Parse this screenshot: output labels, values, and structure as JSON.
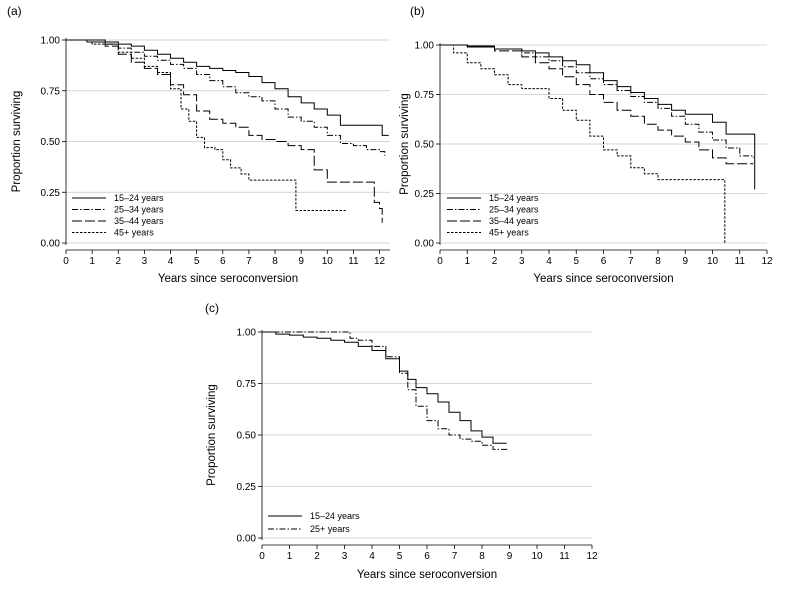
{
  "chart_data": [
    {
      "panel": "(a)",
      "type": "line",
      "xlabel": "Years since seroconversion",
      "ylabel": "Proportion surviving",
      "xlim": [
        0,
        12.4
      ],
      "ylim": [
        0,
        1
      ],
      "xticks": [
        "0",
        "1",
        "2",
        "3",
        "4",
        "5",
        "6",
        "7",
        "8",
        "9",
        "10",
        "11",
        "12"
      ],
      "yticks": [
        "0.00",
        "0.25",
        "0.50",
        "0.75",
        "1.00"
      ],
      "legend_position": "bottom-left",
      "series": [
        {
          "name": "15–24 years",
          "style": "solid",
          "x": [
            0,
            0.8,
            1.5,
            2,
            2.5,
            3,
            3.5,
            4,
            4.5,
            5,
            5.5,
            6,
            6.5,
            7,
            7.5,
            8,
            8.5,
            9,
            9.5,
            10,
            10.5,
            11,
            11.5,
            12,
            12.1,
            12.35
          ],
          "y": [
            1.0,
            1.0,
            0.99,
            0.98,
            0.97,
            0.95,
            0.93,
            0.91,
            0.89,
            0.87,
            0.86,
            0.85,
            0.84,
            0.82,
            0.79,
            0.76,
            0.72,
            0.69,
            0.66,
            0.63,
            0.58,
            0.58,
            0.58,
            0.58,
            0.53,
            0.53
          ]
        },
        {
          "name": "25–34 years",
          "style": "dashdot",
          "x": [
            0,
            0.8,
            1.5,
            2,
            2.5,
            3,
            3.5,
            4,
            4.5,
            5,
            5.5,
            6,
            6.5,
            7,
            7.5,
            8,
            8.5,
            9,
            9.5,
            10,
            10.5,
            11,
            11.5,
            12,
            12.2
          ],
          "y": [
            1.0,
            0.99,
            0.98,
            0.96,
            0.94,
            0.92,
            0.9,
            0.88,
            0.86,
            0.83,
            0.8,
            0.77,
            0.74,
            0.72,
            0.7,
            0.66,
            0.62,
            0.6,
            0.57,
            0.53,
            0.49,
            0.48,
            0.46,
            0.45,
            0.43
          ]
        },
        {
          "name": "35–44 years",
          "style": "longdash",
          "x": [
            0,
            0.8,
            1.5,
            2,
            2.5,
            3,
            3.5,
            4,
            4.5,
            5,
            5.5,
            6,
            6.5,
            7,
            7.5,
            8,
            8.5,
            9,
            9.5,
            10,
            10.5,
            11,
            11.5,
            11.8,
            12.0,
            12.1
          ],
          "y": [
            1.0,
            0.99,
            0.97,
            0.93,
            0.89,
            0.86,
            0.83,
            0.78,
            0.73,
            0.65,
            0.61,
            0.59,
            0.57,
            0.53,
            0.51,
            0.5,
            0.48,
            0.46,
            0.36,
            0.3,
            0.3,
            0.3,
            0.3,
            0.2,
            0.17,
            0.1
          ]
        },
        {
          "name": "45+ years",
          "style": "dotted",
          "x": [
            0,
            1,
            2,
            2.5,
            3,
            3.5,
            4,
            4.4,
            4.7,
            5,
            5.3,
            5.7,
            6,
            6.3,
            6.7,
            7,
            7.5,
            8,
            8.5,
            8.8,
            9,
            10,
            10.7
          ],
          "y": [
            1.0,
            0.98,
            0.94,
            0.91,
            0.87,
            0.84,
            0.76,
            0.66,
            0.6,
            0.52,
            0.47,
            0.46,
            0.41,
            0.37,
            0.34,
            0.31,
            0.31,
            0.31,
            0.31,
            0.16,
            0.16,
            0.16,
            0.16
          ]
        }
      ]
    },
    {
      "panel": "(b)",
      "type": "line",
      "xlabel": "Years since seroconversion",
      "ylabel": "Proportion surviving",
      "xlim": [
        0,
        12
      ],
      "ylim": [
        0,
        1
      ],
      "xticks": [
        "0",
        "1",
        "2",
        "3",
        "4",
        "5",
        "6",
        "7",
        "8",
        "9",
        "10",
        "11",
        "12"
      ],
      "yticks": [
        "0.00",
        "0.25",
        "0.50",
        "0.75",
        "1.00"
      ],
      "legend_position": "bottom-left",
      "series": [
        {
          "name": "15–24 years",
          "style": "solid",
          "x": [
            0,
            1,
            2,
            3,
            3.5,
            4,
            4.5,
            5,
            5.5,
            6,
            6.5,
            7,
            7.5,
            8,
            8.5,
            9,
            9.5,
            10,
            10.5,
            11,
            11.3,
            11.55
          ],
          "y": [
            1.0,
            0.995,
            0.98,
            0.97,
            0.96,
            0.94,
            0.92,
            0.9,
            0.86,
            0.82,
            0.79,
            0.76,
            0.73,
            0.7,
            0.67,
            0.65,
            0.65,
            0.61,
            0.55,
            0.55,
            0.55,
            0.27
          ]
        },
        {
          "name": "25–34 years",
          "style": "dashdot",
          "x": [
            0,
            1,
            2,
            3,
            3.5,
            4,
            4.5,
            5,
            5.5,
            6,
            6.5,
            7,
            7.5,
            8,
            8.5,
            9,
            9.5,
            10,
            10.5,
            11,
            11.5
          ],
          "y": [
            1.0,
            0.99,
            0.98,
            0.96,
            0.94,
            0.92,
            0.89,
            0.86,
            0.83,
            0.8,
            0.77,
            0.74,
            0.71,
            0.68,
            0.64,
            0.6,
            0.56,
            0.52,
            0.48,
            0.44,
            0.43
          ]
        },
        {
          "name": "35–44 years",
          "style": "longdash",
          "x": [
            0,
            1,
            2,
            3,
            3.5,
            4,
            4.5,
            5,
            5.5,
            6,
            6.5,
            7,
            7.5,
            8,
            8.5,
            9,
            9.5,
            10,
            10.5,
            11,
            11.5
          ],
          "y": [
            1.0,
            0.99,
            0.97,
            0.94,
            0.91,
            0.88,
            0.84,
            0.8,
            0.75,
            0.71,
            0.67,
            0.64,
            0.6,
            0.57,
            0.54,
            0.51,
            0.47,
            0.43,
            0.4,
            0.4,
            0.4
          ]
        },
        {
          "name": "45+ years",
          "style": "dotted",
          "x": [
            0,
            0.5,
            1,
            1.5,
            2,
            2.5,
            3,
            3.5,
            4,
            4.5,
            5,
            5.5,
            6,
            6.5,
            7,
            7.5,
            8,
            8.5,
            9,
            9.5,
            10,
            10.4,
            10.45
          ],
          "y": [
            1.0,
            0.96,
            0.91,
            0.88,
            0.85,
            0.8,
            0.78,
            0.78,
            0.73,
            0.67,
            0.62,
            0.54,
            0.47,
            0.44,
            0.38,
            0.35,
            0.32,
            0.32,
            0.32,
            0.32,
            0.32,
            0.32,
            0.0
          ]
        }
      ]
    },
    {
      "panel": "(c)",
      "type": "line",
      "xlabel": "Years since seroconversion",
      "ylabel": "Proportion surviving",
      "xlim": [
        0,
        12
      ],
      "ylim": [
        0,
        1
      ],
      "xticks": [
        "0",
        "1",
        "2",
        "3",
        "4",
        "5",
        "6",
        "7",
        "8",
        "9",
        "10",
        "11",
        "12"
      ],
      "yticks": [
        "0.00",
        "0.25",
        "0.50",
        "0.75",
        "1.00"
      ],
      "legend_position": "bottom-left",
      "series": [
        {
          "name": "15–24 years",
          "style": "solid",
          "x": [
            0,
            0.5,
            1,
            1.5,
            2,
            2.5,
            3,
            3.5,
            4,
            4.5,
            5,
            5.3,
            5.6,
            6,
            6.4,
            6.8,
            7.2,
            7.6,
            8,
            8.4,
            8.9
          ],
          "y": [
            1.0,
            0.99,
            0.985,
            0.975,
            0.97,
            0.96,
            0.95,
            0.93,
            0.91,
            0.87,
            0.81,
            0.77,
            0.73,
            0.7,
            0.66,
            0.61,
            0.57,
            0.52,
            0.49,
            0.46,
            0.46
          ]
        },
        {
          "name": "25+ years",
          "style": "dashdot",
          "x": [
            0,
            1,
            2,
            3,
            3.2,
            3.5,
            4,
            4.5,
            5,
            5.3,
            5.6,
            6,
            6.4,
            6.8,
            7.2,
            7.6,
            8,
            8.4,
            8.9
          ],
          "y": [
            1.0,
            1.0,
            1.0,
            1.0,
            0.97,
            0.96,
            0.93,
            0.88,
            0.8,
            0.72,
            0.64,
            0.57,
            0.53,
            0.5,
            0.48,
            0.47,
            0.45,
            0.43,
            0.42
          ]
        }
      ]
    }
  ]
}
